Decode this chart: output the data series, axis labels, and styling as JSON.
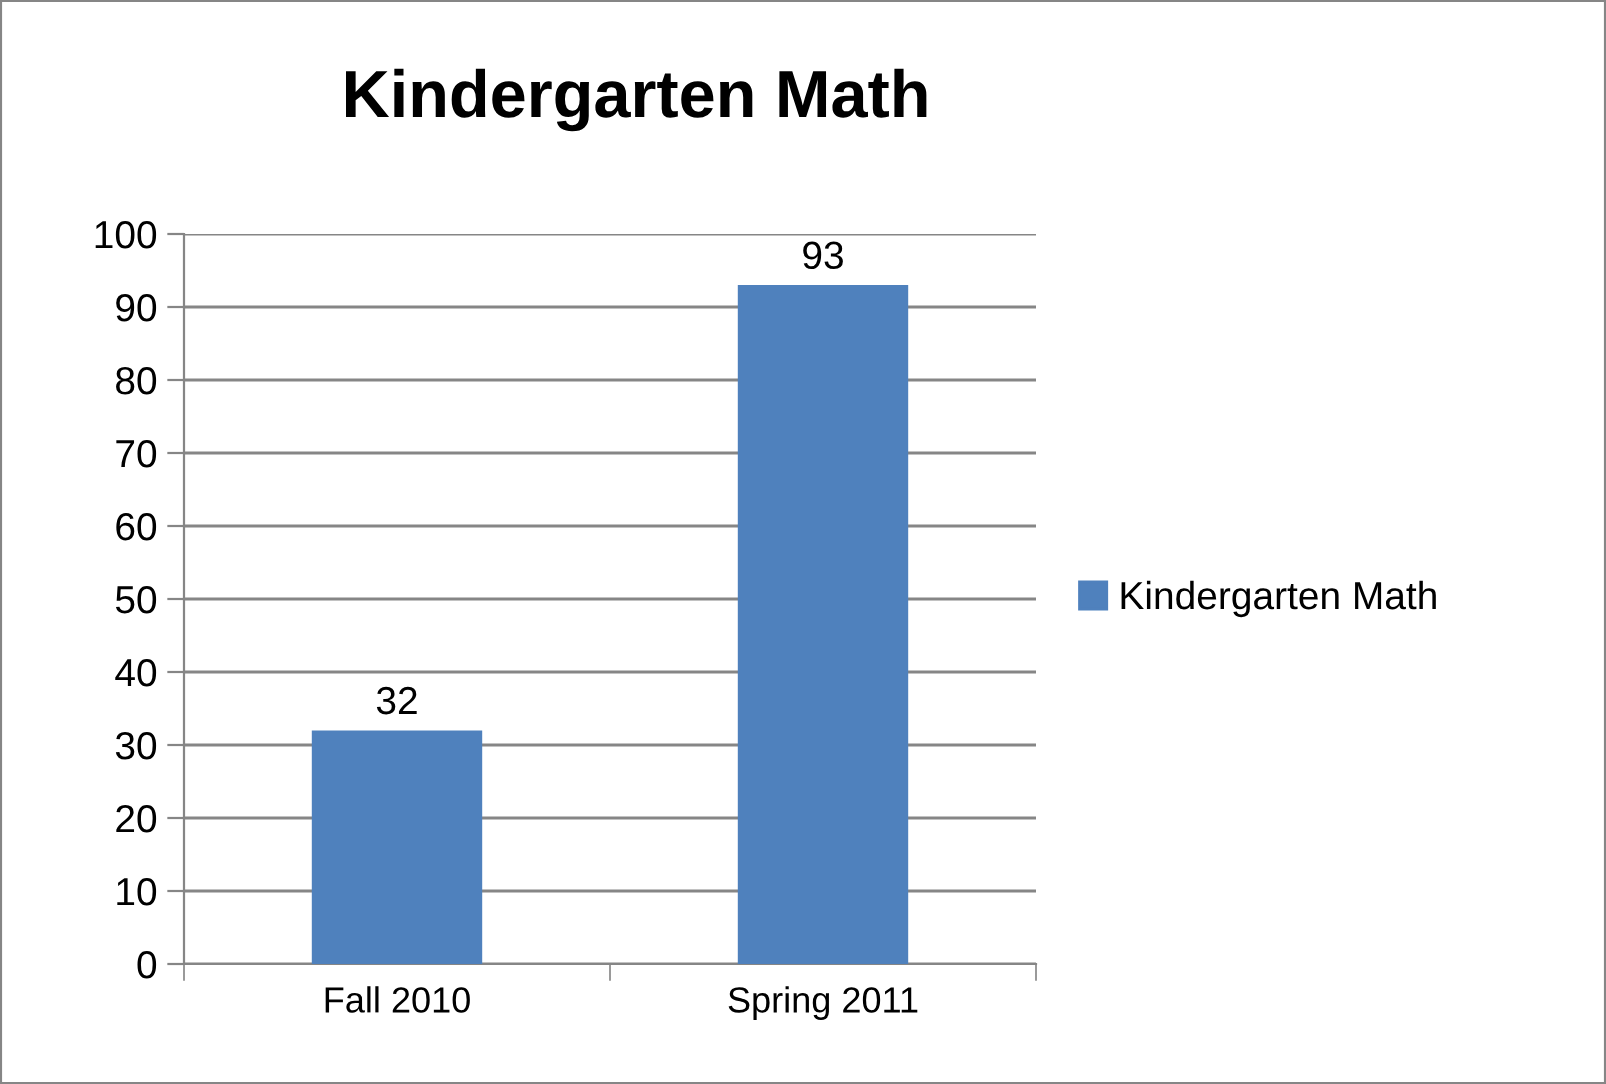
{
  "chart_data": {
    "type": "bar",
    "title": "Kindergarten Math",
    "categories": [
      "Fall 2010",
      "Spring 2011"
    ],
    "series": [
      {
        "name": "Kindergarten Math",
        "color": "#4f81bd",
        "values": [
          32,
          93
        ]
      }
    ],
    "ylim": [
      0,
      100
    ],
    "yticks": [
      0,
      10,
      20,
      30,
      40,
      50,
      60,
      70,
      80,
      90,
      100
    ],
    "grid": "y",
    "legend": "right",
    "data_labels": true
  }
}
